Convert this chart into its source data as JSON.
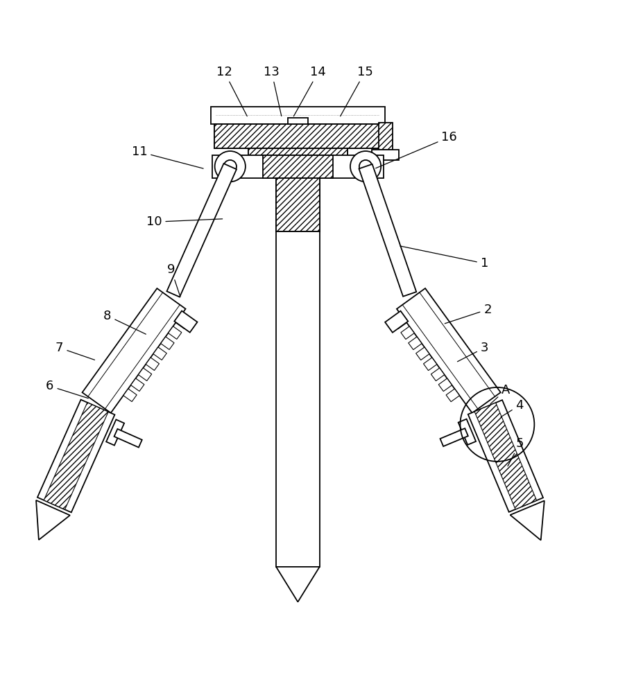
{
  "bg_color": "#ffffff",
  "line_color": "#000000",
  "figsize": [
    9.27,
    10.0
  ],
  "dpi": 100,
  "labels_pos": {
    "1": [
      0.755,
      0.63,
      0.62,
      0.658
    ],
    "2": [
      0.76,
      0.558,
      0.69,
      0.535
    ],
    "3": [
      0.755,
      0.498,
      0.71,
      0.475
    ],
    "4": [
      0.81,
      0.408,
      0.778,
      0.388
    ],
    "5": [
      0.81,
      0.348,
      0.79,
      0.31
    ],
    "6": [
      0.075,
      0.438,
      0.138,
      0.418
    ],
    "7": [
      0.09,
      0.498,
      0.148,
      0.478
    ],
    "8": [
      0.165,
      0.548,
      0.228,
      0.518
    ],
    "9": [
      0.265,
      0.62,
      0.28,
      0.575
    ],
    "10": [
      0.238,
      0.695,
      0.348,
      0.7
    ],
    "11": [
      0.215,
      0.805,
      0.318,
      0.778
    ],
    "12": [
      0.348,
      0.93,
      0.385,
      0.858
    ],
    "13": [
      0.422,
      0.93,
      0.438,
      0.858
    ],
    "14": [
      0.495,
      0.93,
      0.455,
      0.858
    ],
    "15": [
      0.568,
      0.93,
      0.528,
      0.858
    ],
    "16": [
      0.7,
      0.828,
      0.582,
      0.778
    ],
    "A": [
      0.788,
      0.432,
      0.762,
      0.408
    ]
  }
}
